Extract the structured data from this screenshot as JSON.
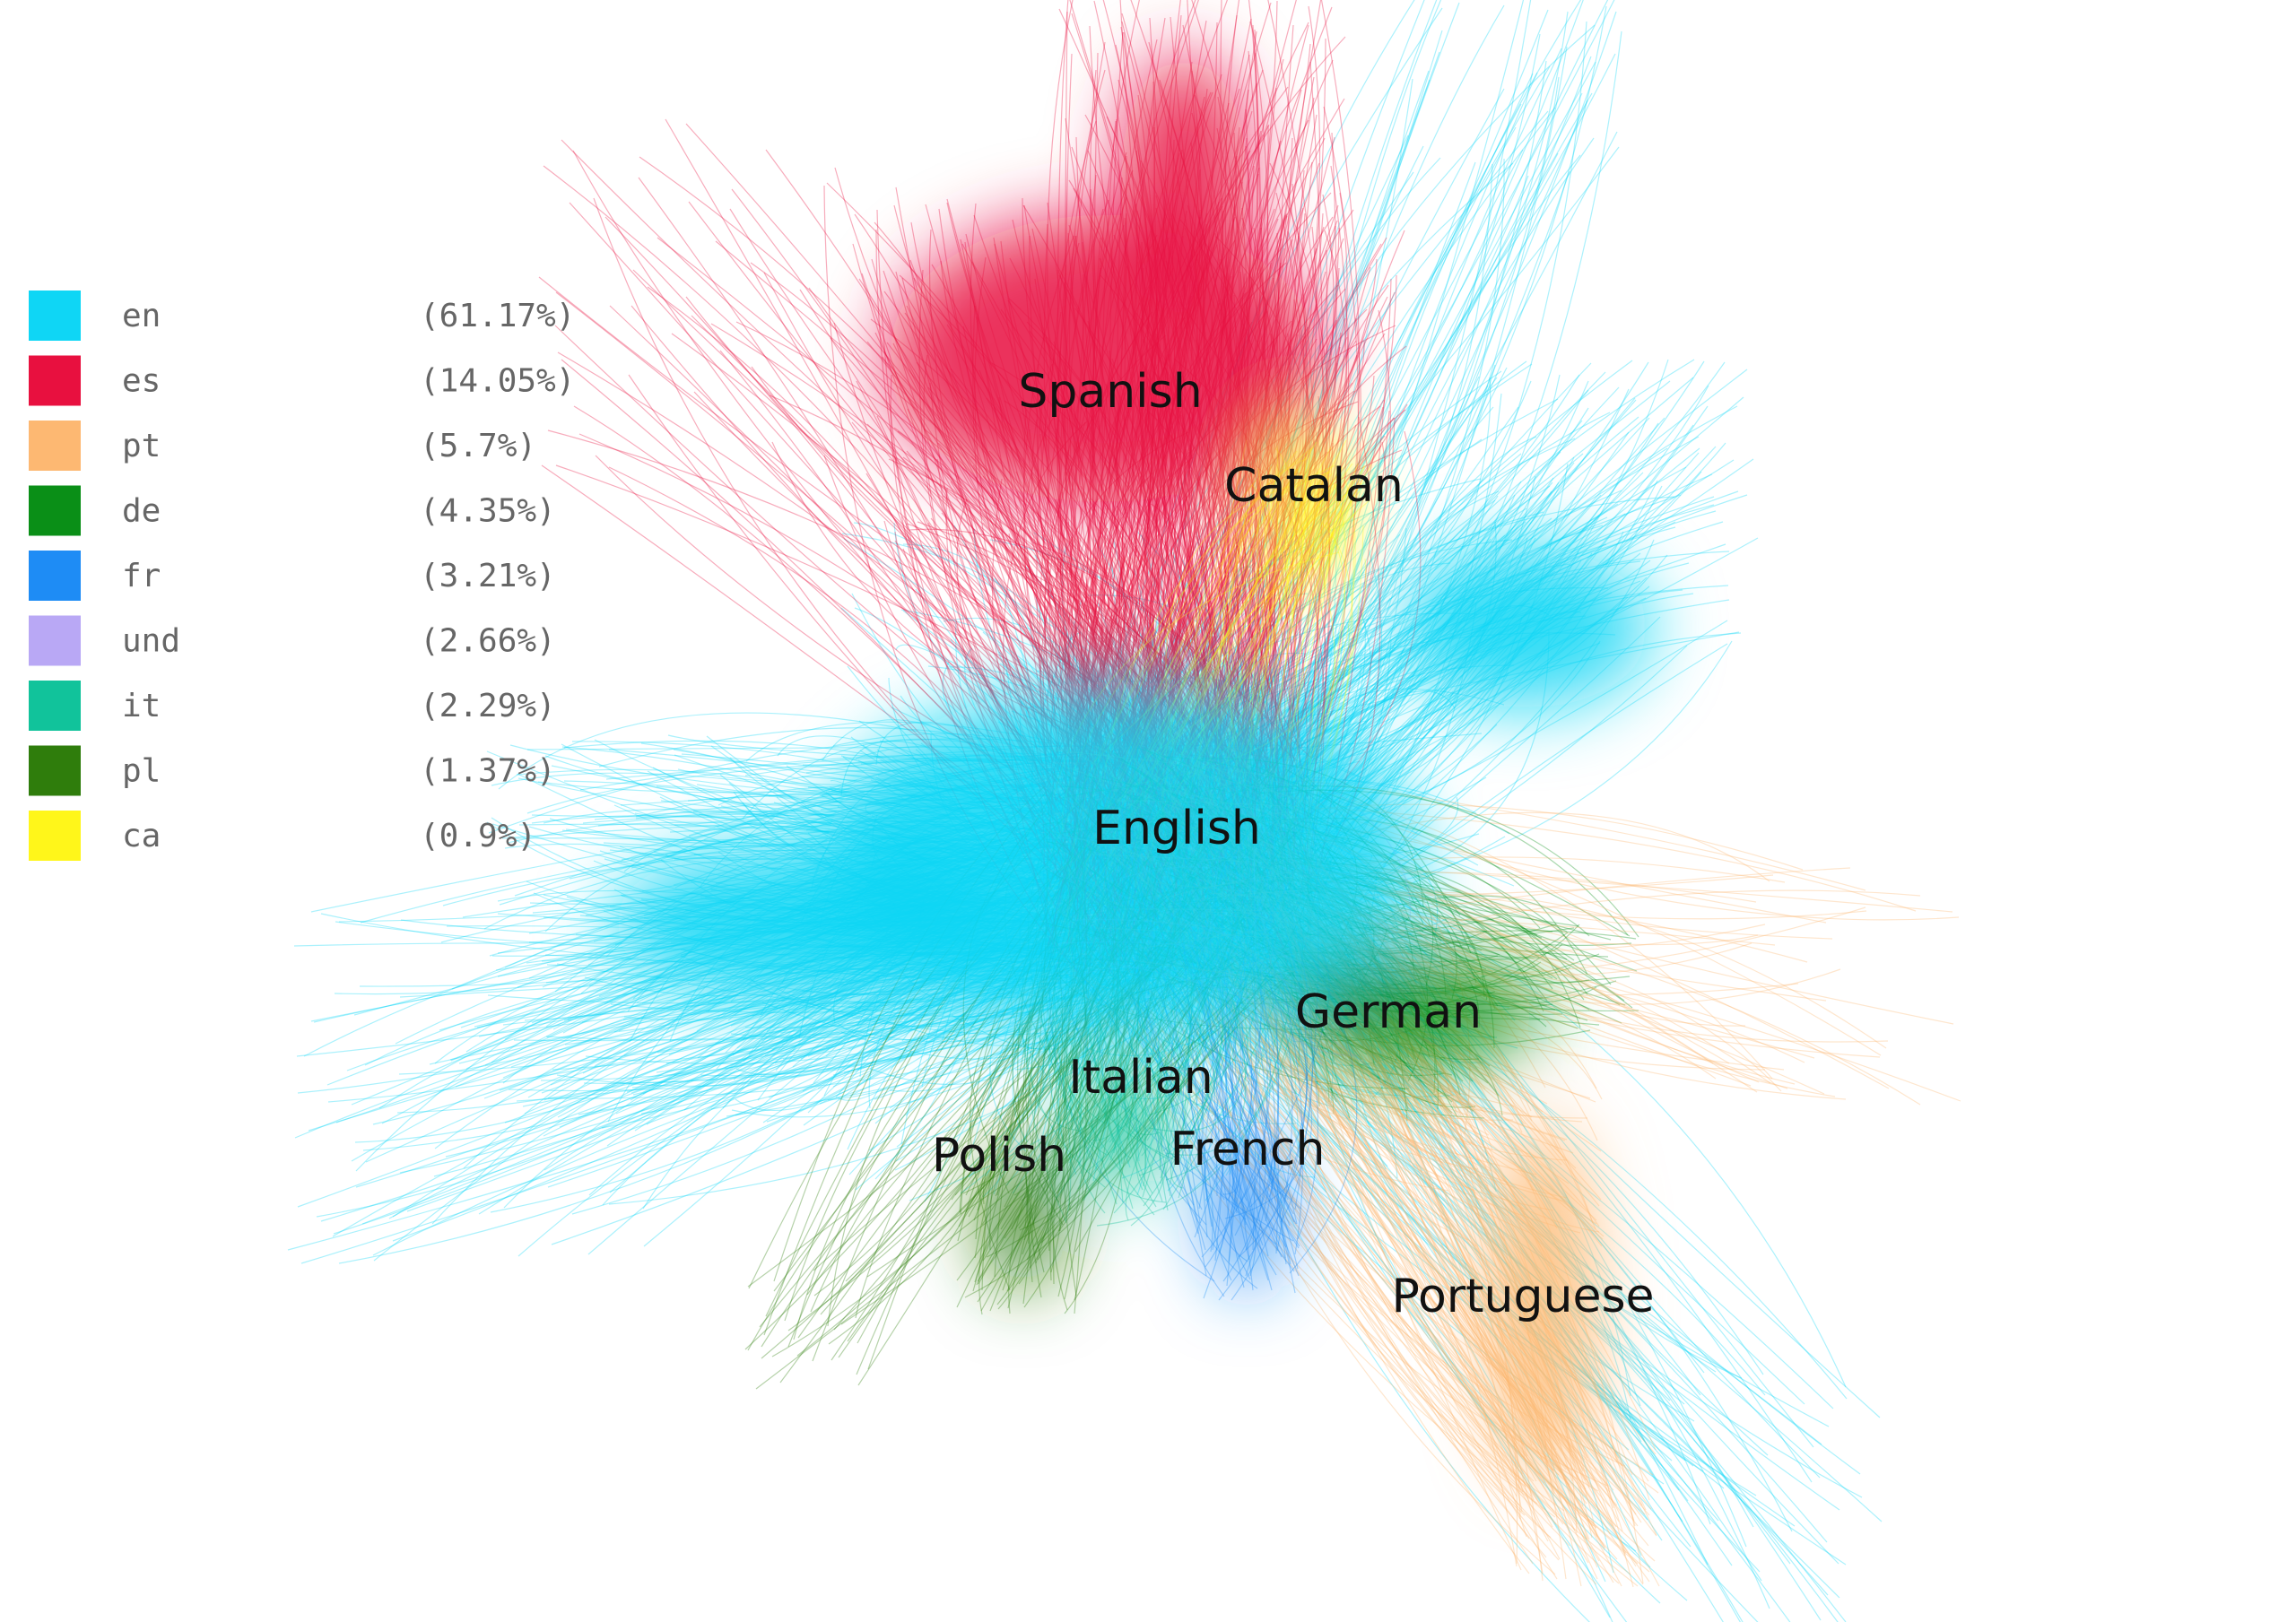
{
  "legend": {
    "items": [
      {
        "code": "en",
        "share": "(61.17%)",
        "color": "#0fd6f5"
      },
      {
        "code": "es",
        "share": "(14.05%)",
        "color": "#e8103f"
      },
      {
        "code": "pt",
        "share": "(5.7%)",
        "color": "#fdb872"
      },
      {
        "code": "de",
        "share": "(4.35%)",
        "color": "#0a8f17"
      },
      {
        "code": "fr",
        "share": "(3.21%)",
        "color": "#1e8cf5"
      },
      {
        "code": "und",
        "share": "(2.66%)",
        "color": "#b9a8f5"
      },
      {
        "code": "it",
        "share": "(2.29%)",
        "color": "#11c39b"
      },
      {
        "code": "pl",
        "share": "(1.37%)",
        "color": "#2f7d0c"
      },
      {
        "code": "ca",
        "share": "(0.9%)",
        "color": "#fff61a"
      }
    ]
  },
  "clusters": [
    {
      "label": "Spanish"
    },
    {
      "label": "Catalan"
    },
    {
      "label": "English"
    },
    {
      "label": "German"
    },
    {
      "label": "Italian"
    },
    {
      "label": "Polish"
    },
    {
      "label": "French"
    },
    {
      "label": "Portuguese"
    }
  ]
}
